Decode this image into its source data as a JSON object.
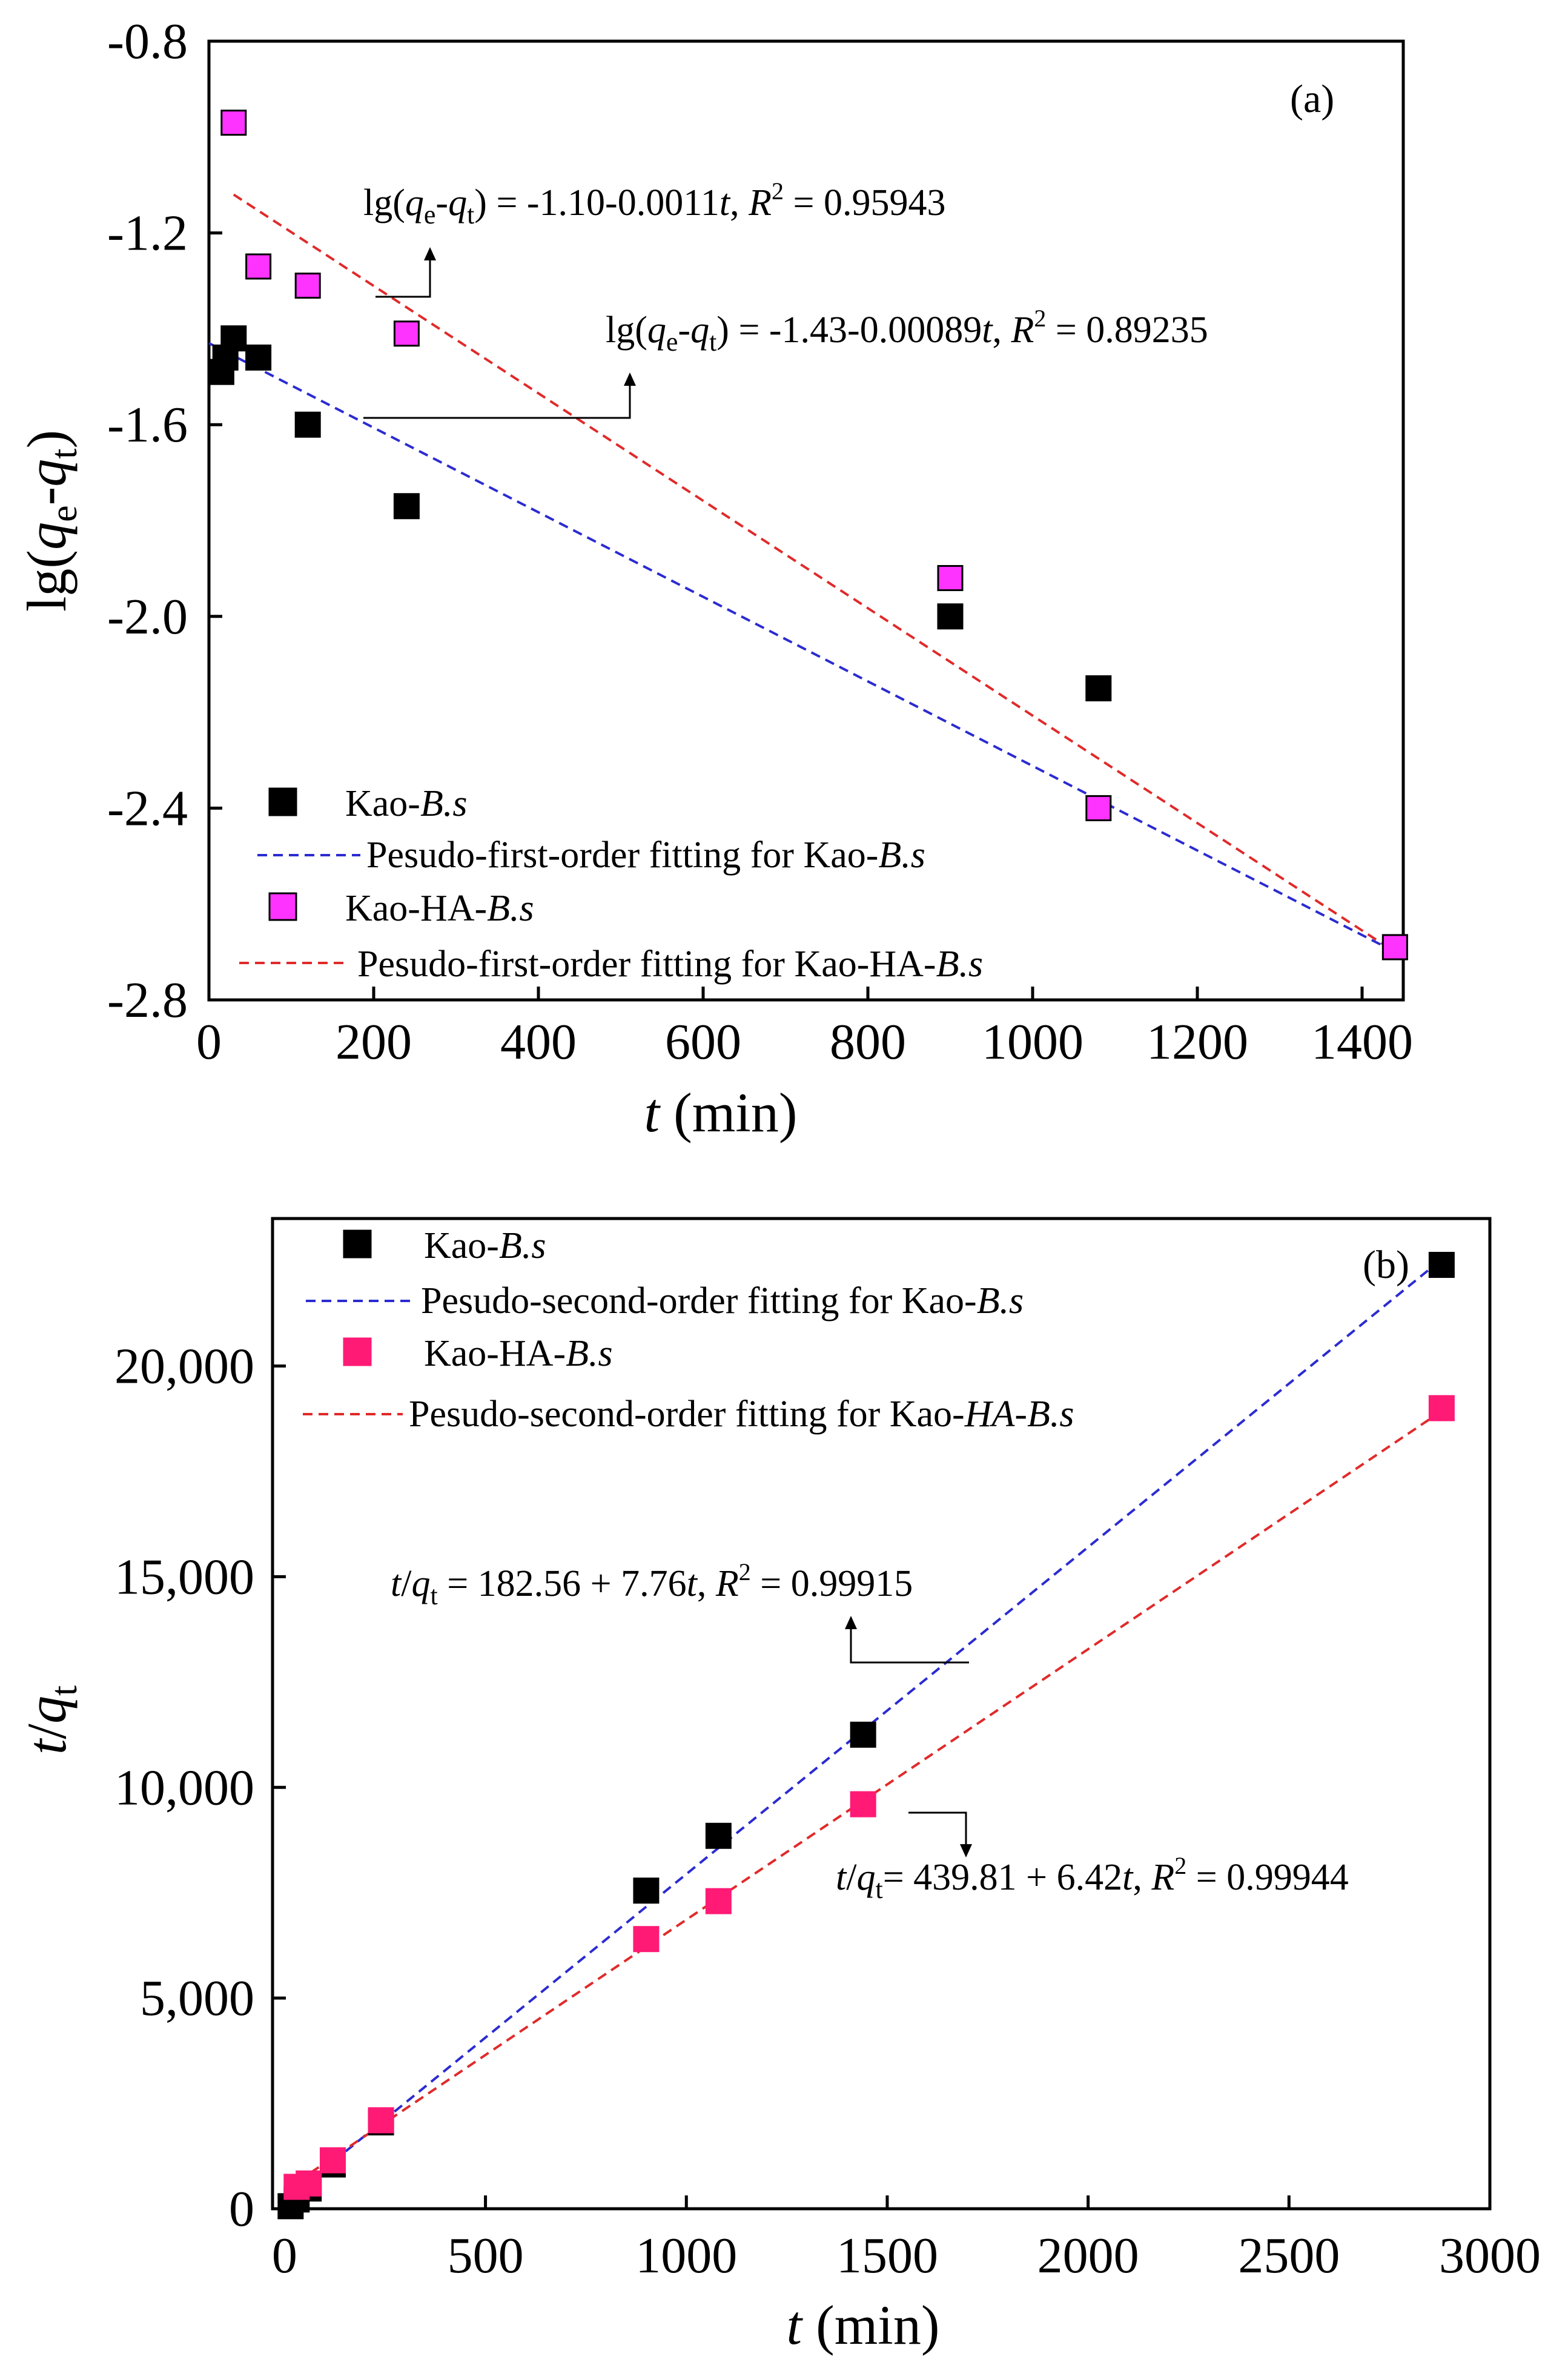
{
  "chart_data": [
    {
      "type": "scatter",
      "panel_label": "(a)",
      "xlabel": {
        "var": "t",
        "rest": " (min)"
      },
      "ylabel": {
        "a": "lg(",
        "q1": "q",
        "s1": "e",
        "dash": "-",
        "q2": "q",
        "s2": "t",
        "b": ")"
      },
      "xlim": [
        0,
        1450
      ],
      "ylim": [
        -2.8,
        -0.8
      ],
      "xticks": [
        0,
        200,
        400,
        600,
        800,
        1000,
        1200,
        1400
      ],
      "xtick_labels": [
        "0",
        "200",
        "400",
        "600",
        "800",
        "1000",
        "1200",
        "1400"
      ],
      "yticks": [
        -2.8,
        -2.4,
        -2.0,
        -1.6,
        -1.2,
        -0.8
      ],
      "ytick_labels": [
        "-2.8",
        "-2.4",
        "-2.0",
        "-1.6",
        "-1.2",
        "-0.8"
      ],
      "series": [
        {
          "name": "Kao-B.s",
          "legend": {
            "plain": "Kao-",
            "italic": "B.s"
          },
          "color": "#000000",
          "x": [
            15,
            20,
            30,
            60,
            120,
            240,
            900,
            1080,
            1440
          ],
          "y": [
            -1.49,
            -1.46,
            -1.42,
            -1.46,
            -1.6,
            -1.77,
            -2.0,
            -2.15,
            -2.69
          ]
        },
        {
          "name": "Kao-HA-B.s",
          "legend": {
            "plain": "Kao-HA-",
            "italic": "B.s"
          },
          "color": "#ff33ff",
          "x": [
            30,
            60,
            120,
            240,
            900,
            1080,
            1440
          ],
          "y": [
            -0.97,
            -1.27,
            -1.31,
            -1.41,
            -1.92,
            -2.4,
            -2.69
          ]
        }
      ],
      "fits": [
        {
          "name": "Pesudo-first-order fitting for Kao-B.s",
          "legend": {
            "plain": "Pesudo-first-order fitting for Kao-",
            "italic": "B.s"
          },
          "color": "#2b2bd1",
          "x": [
            0,
            1440
          ],
          "y": [
            -1.43,
            -2.7
          ]
        },
        {
          "name": "Pesudo-first-order fitting for Kao-HA-B.s",
          "legend": {
            "plain": "Pesudo-first-order fitting for Kao-HA-",
            "italic": "B.s"
          },
          "color": "#e02a2a",
          "x": [
            30,
            1440
          ],
          "y": [
            -1.12,
            -2.7
          ]
        }
      ],
      "equations": [
        {
          "lg": "lg(",
          "q1": "q",
          "s1": "e",
          "dash": "-",
          "q2": "q",
          "s2": "t",
          "mid": ") = -1.10-0.0011",
          "tvar": "t",
          "comma": ", ",
          "R": "R",
          "sup": "2",
          "end": " = 0.95943"
        },
        {
          "lg": "lg(",
          "q1": "q",
          "s1": "e",
          "dash": "-",
          "q2": "q",
          "s2": "t",
          "mid": ") = -1.43-0.00089",
          "tvar": "t",
          "comma": ", ",
          "R": "R",
          "sup": "2",
          "end": " = 0.89235"
        }
      ]
    },
    {
      "type": "scatter",
      "panel_label": "(b)",
      "xlabel": {
        "var": "t",
        "rest": " (min)"
      },
      "ylabel": {
        "t": "t",
        "slash": "/",
        "q": "q",
        "sub": "t"
      },
      "xlim": [
        -30,
        3000
      ],
      "ylim": [
        0,
        23500
      ],
      "xticks": [
        0,
        500,
        1000,
        1500,
        2000,
        2500,
        3000
      ],
      "xtick_labels": [
        "0",
        "500",
        "1000",
        "1500",
        "2000",
        "2500",
        "3000"
      ],
      "yticks": [
        0,
        5000,
        10000,
        15000,
        20000
      ],
      "ytick_labels": [
        "0",
        "5,000",
        "10,000",
        "15,000",
        "20,000"
      ],
      "series": [
        {
          "name": "Kao-B.s",
          "legend": {
            "plain": "Kao-",
            "italic": "B.s"
          },
          "color": "#000000",
          "x": [
            15,
            30,
            60,
            120,
            240,
            900,
            1080,
            1440,
            2880
          ],
          "y": [
            60,
            220,
            480,
            1050,
            2050,
            7550,
            8850,
            11250,
            22400
          ]
        },
        {
          "name": "Kao-HA-B.s",
          "legend": {
            "plain": "Kao-HA-",
            "italic": "B.s"
          },
          "color": "#ff1a75",
          "x": [
            30,
            60,
            120,
            240,
            900,
            1080,
            1440,
            2880
          ],
          "y": [
            520,
            600,
            1150,
            2100,
            6400,
            7300,
            9600,
            19000
          ]
        }
      ],
      "fits": [
        {
          "name": "Pesudo-second-order fitting for Kao-B.s",
          "legend": {
            "plain": "Pesudo-second-order fitting for Kao-",
            "italic": "B.s"
          },
          "color": "#2b2bd1",
          "x": [
            0,
            2880
          ],
          "y": [
            182.56,
            22531.36
          ]
        },
        {
          "name": "Pesudo-second-order fitting for Kao-HA-B.s",
          "legend": {
            "plain": "Pesudo-second-order fitting for Kao-",
            "italic": "HA-B.s"
          },
          "color": "#e02a2a",
          "x": [
            0,
            2880
          ],
          "y": [
            439.81,
            18929.41
          ]
        }
      ],
      "equations": [
        {
          "t": "t",
          "slash": "/",
          "q": "q",
          "sub": "t",
          "mid": " = 182.56 + 7.76",
          "tvar": "t",
          "comma": ", ",
          "R": "R",
          "sup": "2",
          "end": " = 0.99915"
        },
        {
          "t": "t",
          "slash": "/",
          "q": "q",
          "sub": "t",
          "mid": "= 439.81 + 6.42",
          "tvar": "t",
          "comma": ", ",
          "R": "R",
          "sup": "2",
          "end": " = 0.99944"
        }
      ]
    }
  ]
}
